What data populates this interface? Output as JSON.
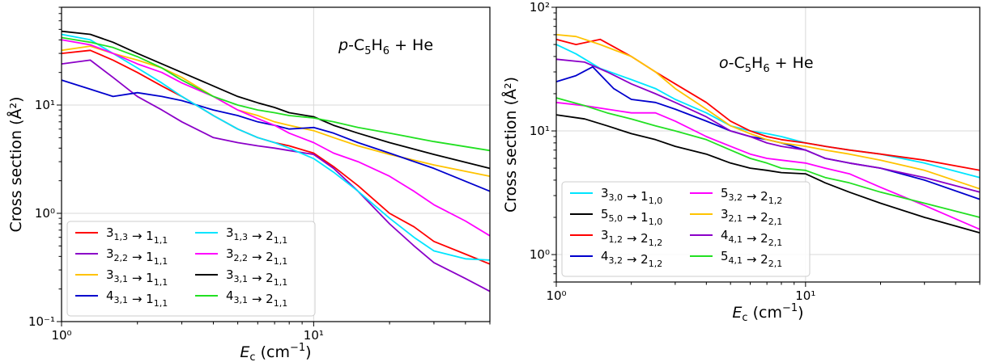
{
  "chart_data": [
    {
      "type": "line",
      "annotation": {
        "pre": "p",
        "mid": "-C",
        "sub1": "5",
        "mid2": "H",
        "sub2": "6",
        "post": " + He"
      },
      "xlabel": {
        "main": "E",
        "sub": "c",
        "unit": " (cm",
        "sup": "−1",
        "close": ")"
      },
      "ylabel": "Cross section (Å²)",
      "xscale": "log",
      "yscale": "log",
      "xlim": [
        1,
        50
      ],
      "ylim": [
        0.1,
        80
      ],
      "xticks": [
        "10⁰",
        "10¹"
      ],
      "yticks": [
        "10⁻¹",
        "10⁰",
        "10¹"
      ],
      "grid": true,
      "legend_position": "lower-left",
      "series": [
        {
          "name": "3₁,₃ → 1₁,₁",
          "color": "#ff0000",
          "x": [
            1,
            1.3,
            1.6,
            2,
            2.5,
            3,
            4,
            5,
            6,
            7,
            8,
            10,
            12,
            15,
            20,
            25,
            30,
            40,
            50
          ],
          "y": [
            30,
            32,
            26,
            20,
            15,
            12,
            8,
            6,
            5,
            4.5,
            4.2,
            3.6,
            2.7,
            1.8,
            1.0,
            0.75,
            0.55,
            0.42,
            0.34
          ]
        },
        {
          "name": "3₂,₂ → 1₁,₁",
          "color": "#8b00c8",
          "x": [
            1,
            1.3,
            1.6,
            2,
            2.5,
            3,
            4,
            5,
            6,
            7,
            8,
            10,
            12,
            15,
            20,
            25,
            30,
            40,
            50
          ],
          "y": [
            24,
            26,
            18,
            12,
            9,
            7,
            5,
            4.5,
            4.2,
            4,
            3.8,
            3.5,
            2.6,
            1.6,
            0.8,
            0.5,
            0.35,
            0.25,
            0.19
          ]
        },
        {
          "name": "3₃,₁ → 1₁,₁",
          "color": "#ffc300",
          "x": [
            1,
            1.3,
            1.6,
            2,
            2.5,
            3,
            4,
            5,
            6,
            7,
            8,
            10,
            12,
            15,
            20,
            30,
            50
          ],
          "y": [
            32,
            35,
            30,
            26,
            22,
            18,
            12,
            9,
            8,
            7,
            6.5,
            5.8,
            5,
            4.2,
            3.5,
            2.8,
            2.2
          ]
        },
        {
          "name": "4₃,₁ → 1₁,₁",
          "color": "#0000cd",
          "x": [
            1,
            1.3,
            1.6,
            2,
            2.5,
            3,
            4,
            5,
            6,
            7,
            8,
            10,
            12,
            15,
            20,
            30,
            50
          ],
          "y": [
            17,
            14,
            12,
            13,
            12,
            11,
            9,
            8,
            7,
            6.5,
            6,
            6.2,
            5.5,
            4.5,
            3.6,
            2.6,
            1.6
          ]
        },
        {
          "name": "3₁,₃ → 2₁,₁",
          "color": "#00e5ff",
          "x": [
            1,
            1.3,
            1.6,
            2,
            2.5,
            3,
            4,
            5,
            6,
            7,
            8,
            10,
            12,
            15,
            20,
            25,
            30,
            40,
            50
          ],
          "y": [
            45,
            40,
            30,
            22,
            16,
            12,
            8,
            6,
            5,
            4.5,
            4,
            3.2,
            2.4,
            1.6,
            0.9,
            0.6,
            0.45,
            0.38,
            0.37
          ]
        },
        {
          "name": "3₂,₂ → 2₁,₁",
          "color": "#ff00ff",
          "x": [
            1,
            1.3,
            1.6,
            2,
            2.5,
            3,
            4,
            5,
            6,
            7,
            8,
            10,
            12,
            15,
            20,
            25,
            30,
            40,
            50
          ],
          "y": [
            40,
            36,
            30,
            24,
            20,
            16,
            12,
            9,
            7.5,
            6.5,
            5.5,
            4.5,
            3.6,
            3,
            2.2,
            1.6,
            1.2,
            0.85,
            0.62
          ]
        },
        {
          "name": "3₃,₁ → 2₁,₁",
          "color": "#000000",
          "x": [
            1,
            1.3,
            1.6,
            2,
            2.5,
            3,
            4,
            5,
            6,
            7,
            8,
            10,
            12,
            15,
            20,
            30,
            50
          ],
          "y": [
            48,
            45,
            38,
            30,
            24,
            20,
            15,
            12,
            10.5,
            9.5,
            8.5,
            7.8,
            6.5,
            5.5,
            4.5,
            3.5,
            2.6
          ]
        },
        {
          "name": "4₃,₁ → 2₁,₁",
          "color": "#22e022",
          "x": [
            1,
            1.3,
            1.6,
            2,
            2.5,
            3,
            4,
            5,
            6,
            7,
            8,
            10,
            12,
            15,
            20,
            30,
            50
          ],
          "y": [
            42,
            38,
            34,
            28,
            22,
            17,
            12,
            10,
            9,
            8.5,
            8,
            7.6,
            7,
            6.2,
            5.5,
            4.6,
            3.8
          ]
        }
      ]
    },
    {
      "type": "line",
      "annotation": {
        "pre": "o",
        "mid": "-C",
        "sub1": "5",
        "mid2": "H",
        "sub2": "6",
        "post": " + He"
      },
      "xlabel": {
        "main": "E",
        "sub": "c",
        "unit": " (cm",
        "sup": "−1",
        "close": ")"
      },
      "ylabel": "Cross section (Å²)",
      "xscale": "log",
      "yscale": "log",
      "xlim": [
        1,
        50
      ],
      "ylim": [
        0.6,
        100
      ],
      "xticks": [
        "10⁰",
        "10¹"
      ],
      "yticks": [
        "10⁰",
        "10¹",
        "10²"
      ],
      "grid": true,
      "legend_position": "lower-left",
      "series": [
        {
          "name": "3₃,₀ → 1₁,₀",
          "color": "#00e5ff",
          "x": [
            1,
            1.2,
            1.5,
            2,
            2.5,
            3,
            4,
            5,
            6,
            7,
            8,
            10,
            12,
            15,
            20,
            30,
            50
          ],
          "y": [
            50,
            42,
            32,
            26,
            22,
            18,
            14,
            11,
            10,
            9.5,
            9,
            8,
            7.5,
            7,
            6.5,
            5.5,
            4.2
          ]
        },
        {
          "name": "5₅,₀ → 1₁,₀",
          "color": "#000000",
          "x": [
            1,
            1.3,
            1.6,
            2,
            2.5,
            3,
            4,
            5,
            6,
            7,
            8,
            10,
            12,
            15,
            20,
            30,
            50
          ],
          "y": [
            13.5,
            12.5,
            11,
            9.5,
            8.5,
            7.5,
            6.5,
            5.5,
            5,
            4.8,
            4.6,
            4.5,
            3.8,
            3.2,
            2.6,
            2,
            1.5
          ]
        },
        {
          "name": "3₁,₂ → 2₁,₂",
          "color": "#ff0000",
          "x": [
            1,
            1.2,
            1.5,
            2,
            2.5,
            3,
            4,
            5,
            6,
            7,
            8,
            10,
            12,
            15,
            20,
            30,
            50
          ],
          "y": [
            55,
            50,
            55,
            40,
            30,
            24,
            17,
            12,
            10,
            9,
            8.5,
            8,
            7.5,
            7,
            6.5,
            5.8,
            4.8
          ]
        },
        {
          "name": "4₃,₂ → 2₁,₂",
          "color": "#0000cd",
          "x": [
            1,
            1.2,
            1.4,
            1.7,
            2,
            2.5,
            3,
            4,
            5,
            6,
            7,
            8,
            10,
            12,
            15,
            20,
            30,
            50
          ],
          "y": [
            25,
            28,
            33,
            22,
            18,
            17,
            15,
            12,
            10,
            9,
            8.5,
            8,
            7,
            6,
            5.5,
            5,
            4,
            2.8
          ]
        },
        {
          "name": "5₃,₂ → 2₁,₂",
          "color": "#ff00ff",
          "x": [
            1,
            1.3,
            1.6,
            2,
            2.5,
            3,
            4,
            5,
            6,
            7,
            8,
            10,
            12,
            15,
            20,
            30,
            50
          ],
          "y": [
            17,
            16,
            15,
            14,
            14,
            12,
            9,
            7.5,
            6.5,
            6,
            5.8,
            5.5,
            5,
            4.5,
            3.5,
            2.5,
            1.6
          ]
        },
        {
          "name": "3₂,₁ → 2₂,₁",
          "color": "#ffc300",
          "x": [
            1,
            1.2,
            1.5,
            2,
            2.5,
            3,
            4,
            5,
            6,
            7,
            8,
            10,
            12,
            15,
            20,
            30,
            50
          ],
          "y": [
            60,
            58,
            50,
            40,
            30,
            22,
            15,
            11,
            9.5,
            8.5,
            8,
            7.5,
            7,
            6.5,
            5.8,
            4.8,
            3.4
          ]
        },
        {
          "name": "4₄,₁ → 2₂,₁",
          "color": "#8b00c8",
          "x": [
            1,
            1.3,
            1.6,
            2,
            2.5,
            3,
            4,
            5,
            6,
            7,
            8,
            10,
            12,
            15,
            20,
            30,
            50
          ],
          "y": [
            38,
            36,
            30,
            24,
            20,
            17,
            13,
            10,
            9,
            8,
            7.5,
            7,
            6,
            5.5,
            5,
            4.2,
            3.2
          ]
        },
        {
          "name": "5₄,₁ → 2₂,₁",
          "color": "#22e022",
          "x": [
            1,
            1.3,
            1.6,
            2,
            2.5,
            3,
            4,
            5,
            6,
            7,
            8,
            10,
            12,
            15,
            20,
            30,
            50
          ],
          "y": [
            18.5,
            16,
            14,
            12.5,
            11,
            10,
            8.5,
            7,
            6,
            5.5,
            5,
            4.8,
            4.2,
            3.8,
            3.2,
            2.6,
            2.0
          ]
        }
      ]
    }
  ]
}
